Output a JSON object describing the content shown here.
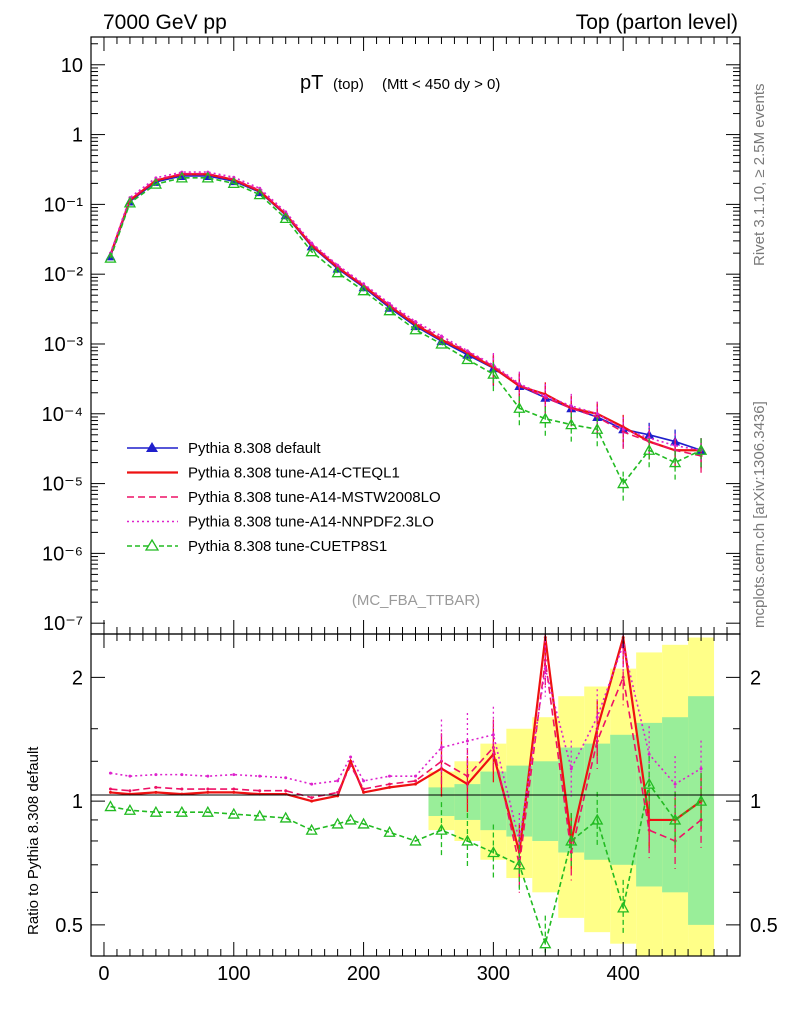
{
  "header": {
    "left": "7000 GeV pp",
    "right": "Top (parton level)"
  },
  "side_text": {
    "rivet": "Rivet 3.1.10, ≥ 2.5M events",
    "mcplots": "mcplots.cern.ch [arXiv:1306.3436]"
  },
  "plot_title": {
    "main": "pT",
    "sub1": "(top)",
    "sub2": "(Mtt < 450 dy > 0)"
  },
  "analysis_label": "(MC_FBA_TTBAR)",
  "ratio_ylabel": "Ratio to Pythia 8.308 default",
  "chart_data": [
    {
      "type": "line",
      "panel": "main",
      "yscale": "log",
      "xlim": [
        -10,
        490
      ],
      "ylim": [
        7e-08,
        25
      ],
      "grid": false,
      "legend_position": "lower-left",
      "xticks": [
        0,
        100,
        200,
        300,
        400
      ],
      "ytick_labels": [
        "10",
        "1",
        "10⁻¹",
        "10⁻²",
        "10⁻³",
        "10⁻⁴",
        "10⁻⁵",
        "10⁻⁶",
        "10⁻⁷"
      ],
      "ytick_values": [
        10,
        1,
        0.1,
        0.01,
        0.001,
        0.0001,
        1e-05,
        1e-06,
        1e-07
      ],
      "series": [
        {
          "name": "Pythia 8.308 default",
          "color": "#1f1fcc",
          "dash": "",
          "marker": "triangle-filled",
          "x": [
            5,
            20,
            40,
            60,
            80,
            100,
            120,
            140,
            160,
            180,
            200,
            220,
            240,
            260,
            280,
            300,
            320,
            340,
            360,
            380,
            400,
            420,
            440,
            460
          ],
          "y": [
            0.018,
            0.11,
            0.21,
            0.255,
            0.255,
            0.215,
            0.15,
            0.07,
            0.025,
            0.012,
            0.0065,
            0.0033,
            0.0018,
            0.0011,
            0.0007,
            0.00045,
            0.00025,
            0.00017,
            0.00012,
            9e-05,
            6e-05,
            5e-05,
            4e-05,
            3e-05
          ]
        },
        {
          "name": "Pythia 8.308 tune-A14-CTEQL1",
          "color": "#ee1111",
          "dash": "",
          "marker": "none",
          "x": [
            5,
            20,
            40,
            60,
            80,
            100,
            120,
            140,
            160,
            180,
            200,
            220,
            240,
            260,
            280,
            300,
            320,
            340,
            360,
            380,
            400,
            420,
            440,
            460
          ],
          "y": [
            0.019,
            0.115,
            0.22,
            0.27,
            0.27,
            0.225,
            0.155,
            0.072,
            0.026,
            0.0125,
            0.0068,
            0.0035,
            0.0019,
            0.00115,
            0.00075,
            0.00046,
            0.00025,
            0.00019,
            0.00012,
            0.0001,
            6.5e-05,
            4e-05,
            3e-05,
            3e-05
          ]
        },
        {
          "name": "Pythia 8.308 tune-A14-MSTW2008LO",
          "color": "#ee1166",
          "dash": "7,4",
          "marker": "none",
          "x": [
            5,
            20,
            40,
            60,
            80,
            100,
            120,
            140,
            160,
            180,
            200,
            220,
            240,
            260,
            280,
            300,
            320,
            340,
            360,
            380,
            400,
            420,
            440,
            460
          ],
          "y": [
            0.019,
            0.118,
            0.225,
            0.275,
            0.275,
            0.23,
            0.16,
            0.074,
            0.027,
            0.013,
            0.007,
            0.0036,
            0.002,
            0.0012,
            0.00078,
            0.00048,
            0.00026,
            0.00017,
            0.00012,
            9e-05,
            5.5e-05,
            4e-05,
            3e-05,
            2.5e-05
          ]
        },
        {
          "name": "Pythia 8.308 tune-A14-NNPDF2.3LO",
          "color": "#dd22cc",
          "dash": "2,3",
          "marker": "none",
          "x": [
            5,
            20,
            40,
            60,
            80,
            100,
            120,
            140,
            160,
            180,
            200,
            220,
            240,
            260,
            280,
            300,
            320,
            340,
            360,
            380,
            400,
            420,
            440,
            460
          ],
          "y": [
            0.02,
            0.125,
            0.24,
            0.29,
            0.29,
            0.245,
            0.17,
            0.078,
            0.028,
            0.0135,
            0.0073,
            0.0038,
            0.0021,
            0.0013,
            0.0008,
            0.0005,
            0.00027,
            0.00018,
            0.00013,
            0.0001,
            6e-05,
            4.5e-05,
            3.5e-05,
            3e-05
          ]
        },
        {
          "name": "Pythia 8.308 tune-CUETP8S1",
          "color": "#22bb22",
          "dash": "5,3",
          "marker": "triangle-open",
          "x": [
            5,
            20,
            40,
            60,
            80,
            100,
            120,
            140,
            160,
            180,
            200,
            220,
            240,
            260,
            280,
            300,
            320,
            340,
            360,
            380,
            400,
            420,
            440,
            460
          ],
          "y": [
            0.017,
            0.105,
            0.195,
            0.24,
            0.24,
            0.2,
            0.138,
            0.063,
            0.021,
            0.0105,
            0.0058,
            0.003,
            0.0016,
            0.001,
            0.0006,
            0.00037,
            0.00012,
            8.5e-05,
            7e-05,
            6e-05,
            1e-05,
            3e-05,
            2e-05,
            3e-05
          ]
        }
      ]
    },
    {
      "type": "line",
      "panel": "ratio",
      "yscale": "log",
      "xlim": [
        -10,
        490
      ],
      "ylim": [
        0.42,
        2.55
      ],
      "ylabel": "Ratio to Pythia 8.308 default",
      "grid": false,
      "xticks": [
        0,
        100,
        200,
        300,
        400
      ],
      "ytick_values": [
        0.5,
        1,
        2
      ],
      "ytick_labels": [
        "0.5",
        "1",
        "2"
      ],
      "band": {
        "x": [
          260,
          280,
          300,
          320,
          340,
          360,
          380,
          400,
          420,
          440,
          460
        ],
        "green_lo": [
          0.92,
          0.9,
          0.85,
          0.82,
          0.8,
          0.75,
          0.72,
          0.7,
          0.62,
          0.6,
          0.5
        ],
        "green_hi": [
          1.08,
          1.1,
          1.18,
          1.22,
          1.25,
          1.35,
          1.38,
          1.45,
          1.55,
          1.6,
          1.8
        ],
        "yellow_lo": [
          0.85,
          0.8,
          0.72,
          0.65,
          0.6,
          0.52,
          0.48,
          0.45,
          0.42,
          0.42,
          0.42
        ],
        "yellow_hi": [
          1.18,
          1.25,
          1.38,
          1.5,
          1.6,
          1.8,
          1.9,
          2.1,
          2.3,
          2.4,
          2.5
        ]
      },
      "series": [
        {
          "name": "Pythia 8.308 tune-A14-CTEQL1",
          "color": "#ee1111",
          "dash": "",
          "x": [
            5,
            20,
            40,
            60,
            80,
            100,
            120,
            140,
            160,
            180,
            190,
            200,
            220,
            240,
            260,
            280,
            300,
            320,
            340,
            360,
            380,
            400,
            420,
            440,
            460
          ],
          "y": [
            1.05,
            1.04,
            1.05,
            1.04,
            1.05,
            1.05,
            1.04,
            1.04,
            1.0,
            1.03,
            1.25,
            1.05,
            1.08,
            1.1,
            1.2,
            1.1,
            1.3,
            0.75,
            2.5,
            0.8,
            1.5,
            2.5,
            0.9,
            0.9,
            1.0
          ]
        },
        {
          "name": "Pythia 8.308 tune-A14-MSTW2008LO",
          "color": "#ee1166",
          "dash": "7,4",
          "x": [
            5,
            20,
            40,
            60,
            80,
            100,
            120,
            140,
            160,
            180,
            190,
            200,
            220,
            240,
            260,
            280,
            300,
            320,
            340,
            360,
            380,
            400,
            420,
            440,
            460
          ],
          "y": [
            1.07,
            1.06,
            1.08,
            1.07,
            1.07,
            1.07,
            1.06,
            1.06,
            1.02,
            1.05,
            1.22,
            1.07,
            1.1,
            1.12,
            1.25,
            1.15,
            1.35,
            0.7,
            2.2,
            0.75,
            1.4,
            2.0,
            0.85,
            0.8,
            0.9
          ]
        },
        {
          "name": "Pythia 8.308 tune-A14-NNPDF2.3LO",
          "color": "#dd22cc",
          "dash": "2,3",
          "x": [
            5,
            20,
            40,
            60,
            80,
            100,
            120,
            140,
            160,
            180,
            190,
            200,
            220,
            240,
            260,
            280,
            300,
            320,
            340,
            360,
            380,
            400,
            420,
            440,
            460
          ],
          "y": [
            1.17,
            1.15,
            1.16,
            1.16,
            1.15,
            1.16,
            1.15,
            1.14,
            1.1,
            1.12,
            1.28,
            1.12,
            1.15,
            1.15,
            1.35,
            1.4,
            1.45,
            0.8,
            2.1,
            1.2,
            1.6,
            2.4,
            1.3,
            1.1,
            1.2
          ]
        },
        {
          "name": "Pythia 8.308 tune-CUETP8S1",
          "color": "#22bb22",
          "dash": "5,3",
          "x": [
            5,
            20,
            40,
            60,
            80,
            100,
            120,
            140,
            160,
            180,
            190,
            200,
            220,
            240,
            260,
            280,
            300,
            320,
            340,
            360,
            380,
            400,
            420,
            440,
            460
          ],
          "y": [
            0.97,
            0.95,
            0.94,
            0.94,
            0.94,
            0.93,
            0.92,
            0.91,
            0.85,
            0.88,
            0.9,
            0.88,
            0.84,
            0.8,
            0.85,
            0.8,
            0.75,
            0.7,
            0.45,
            0.8,
            0.9,
            0.55,
            1.1,
            0.9,
            1.0
          ]
        }
      ]
    }
  ]
}
